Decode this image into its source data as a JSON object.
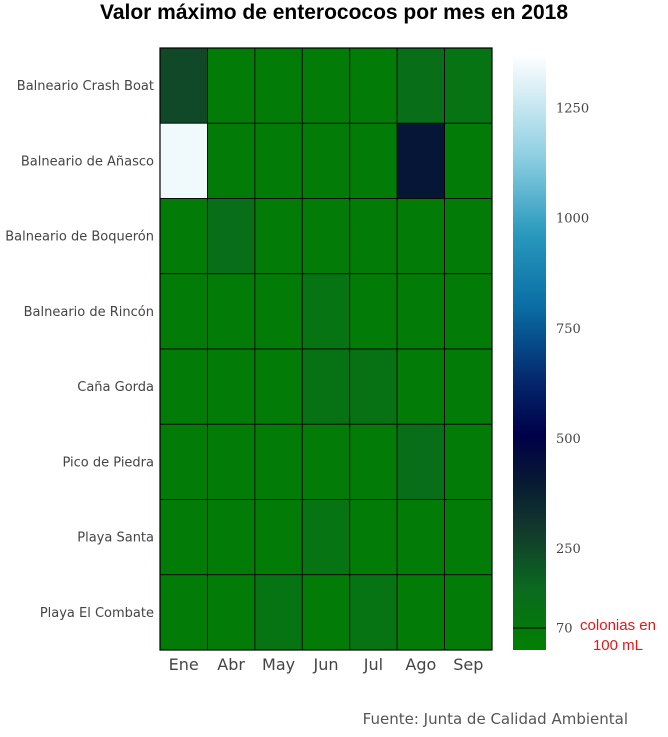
{
  "chart_data": {
    "type": "heatmap",
    "title": "Valor máximo de enterococos por mes en 2018",
    "columns": [
      "Ene",
      "Abr",
      "May",
      "Jun",
      "Jul",
      "Ago",
      "Sep"
    ],
    "rows": [
      "Balneario Crash Boat",
      "Balneario de Añasco",
      "Balneario de Boquerón",
      "Balneario de Rincón",
      "Caña Gorda",
      "Pico de Piedra",
      "Playa Santa",
      "Playa El Combate"
    ],
    "values": [
      [
        250,
        50,
        50,
        50,
        50,
        130,
        100
      ],
      [
        1340,
        50,
        50,
        50,
        50,
        420,
        50
      ],
      [
        50,
        130,
        50,
        50,
        50,
        50,
        50
      ],
      [
        50,
        50,
        50,
        100,
        50,
        50,
        50
      ],
      [
        50,
        50,
        50,
        110,
        110,
        50,
        50
      ],
      [
        50,
        50,
        50,
        50,
        50,
        130,
        50
      ],
      [
        50,
        50,
        50,
        100,
        50,
        50,
        50
      ],
      [
        50,
        50,
        100,
        50,
        100,
        50,
        50
      ]
    ],
    "colorscale": {
      "min": 20,
      "max": 1370,
      "stops": [
        [
          0,
          "#008000"
        ],
        [
          0.1,
          "#0a6b1e"
        ],
        [
          0.2,
          "#123a2c"
        ],
        [
          0.28,
          "#071b32"
        ],
        [
          0.36,
          "#000048"
        ],
        [
          0.45,
          "#03266c"
        ],
        [
          0.58,
          "#0a6fa5"
        ],
        [
          0.7,
          "#2a99bd"
        ],
        [
          0.83,
          "#8ecfe2"
        ],
        [
          1,
          "#ffffff"
        ]
      ],
      "ticks": [
        70,
        250,
        500,
        750,
        1000,
        1250
      ],
      "threshold": 70,
      "threshold_label": [
        "colonias en",
        "100 mL"
      ]
    },
    "source": "Fuente: Junta de Calidad Ambiental"
  }
}
